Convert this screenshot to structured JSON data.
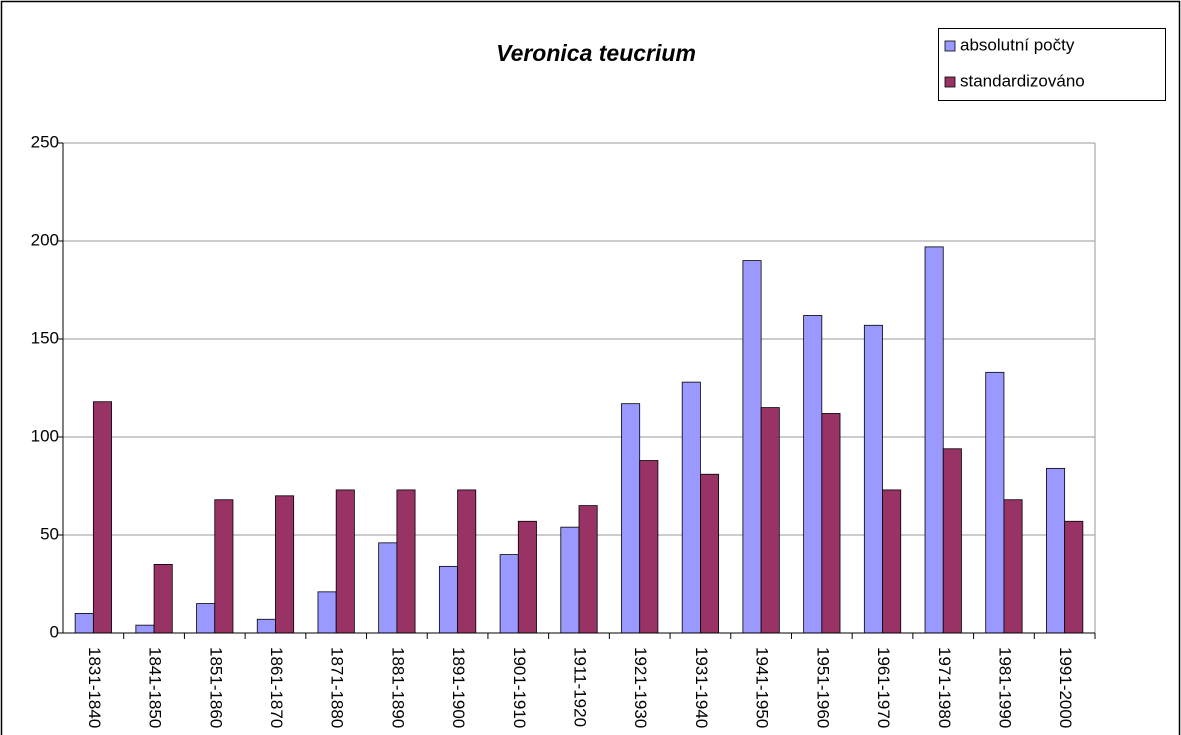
{
  "chart_data": {
    "type": "bar",
    "title": "Veronica teucrium",
    "categories": [
      "1831-1840",
      "1841-1850",
      "1851-1860",
      "1861-1870",
      "1871-1880",
      "1881-1890",
      "1891-1900",
      "1901-1910",
      "1911-1920",
      "1921-1930",
      "1931-1940",
      "1941-1950",
      "1951-1960",
      "1961-1970",
      "1971-1980",
      "1981-1990",
      "1991-2000"
    ],
    "series": [
      {
        "name": "absolutní počty",
        "color": "#9999ff",
        "values": [
          10,
          4,
          15,
          7,
          21,
          46,
          34,
          40,
          54,
          117,
          128,
          190,
          162,
          157,
          197,
          133,
          84
        ]
      },
      {
        "name": "standardizováno",
        "color": "#993366",
        "values": [
          118,
          35,
          68,
          70,
          73,
          73,
          73,
          57,
          65,
          88,
          81,
          115,
          112,
          73,
          94,
          68,
          57
        ]
      }
    ],
    "ylim": [
      0,
      250
    ],
    "yticks": [
      0,
      50,
      100,
      150,
      200,
      250
    ],
    "grid": true,
    "legend": "top-right"
  }
}
